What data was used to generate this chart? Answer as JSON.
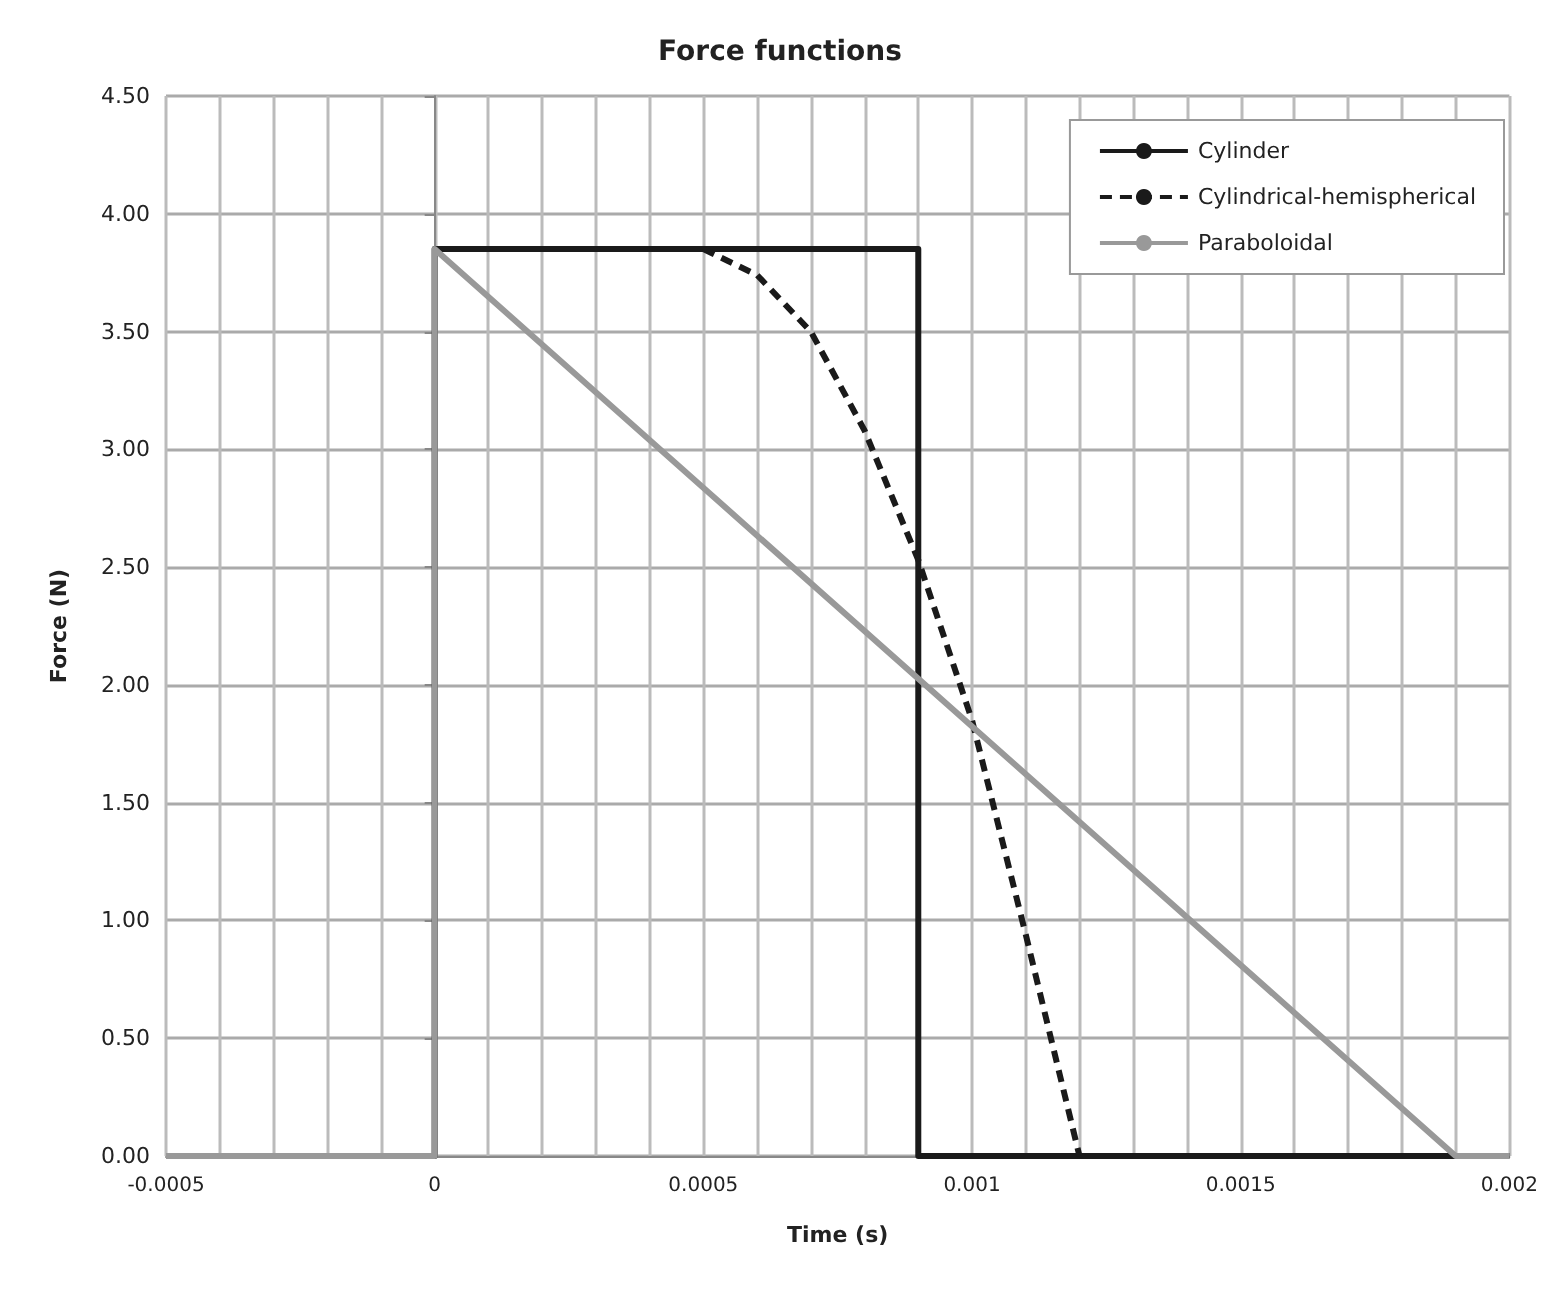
{
  "chart_data": {
    "type": "line",
    "title": "Force functions",
    "xlabel": "Time (s)",
    "ylabel": "Force (N)",
    "xlim": [
      -0.0005,
      0.002
    ],
    "xticks": [
      {
        "value": -0.0005,
        "label": "-0.0005"
      },
      {
        "value": -0.0004,
        "label": null
      },
      {
        "value": -0.0003,
        "label": null
      },
      {
        "value": -0.0002,
        "label": null
      },
      {
        "value": -0.0001,
        "label": null
      },
      {
        "value": 0,
        "label": "0"
      },
      {
        "value": 0.0001,
        "label": null
      },
      {
        "value": 0.0002,
        "label": null
      },
      {
        "value": 0.0003,
        "label": null
      },
      {
        "value": 0.0004,
        "label": null
      },
      {
        "value": 0.0005,
        "label": "0.0005"
      },
      {
        "value": 0.0006,
        "label": null
      },
      {
        "value": 0.0007,
        "label": null
      },
      {
        "value": 0.0008,
        "label": null
      },
      {
        "value": 0.0009,
        "label": null
      },
      {
        "value": 0.001,
        "label": "0.001"
      },
      {
        "value": 0.0011,
        "label": null
      },
      {
        "value": 0.0012,
        "label": null
      },
      {
        "value": 0.0013,
        "label": null
      },
      {
        "value": 0.0014,
        "label": null
      },
      {
        "value": 0.0015,
        "label": "0.0015"
      },
      {
        "value": 0.0016,
        "label": null
      },
      {
        "value": 0.0017,
        "label": null
      },
      {
        "value": 0.0018,
        "label": null
      },
      {
        "value": 0.0019,
        "label": null
      },
      {
        "value": 0.002,
        "label": "0.002"
      }
    ],
    "ylim": [
      0,
      4.5
    ],
    "yticks": [
      {
        "value": 0,
        "label": "0.00"
      },
      {
        "value": 0.5,
        "label": "0.50"
      },
      {
        "value": 1,
        "label": "1.00"
      },
      {
        "value": 1.5,
        "label": "1.50"
      },
      {
        "value": 2,
        "label": "2.00"
      },
      {
        "value": 2.5,
        "label": "2.50"
      },
      {
        "value": 3,
        "label": "3.00"
      },
      {
        "value": 3.5,
        "label": "3.50"
      },
      {
        "value": 4,
        "label": "4.00"
      },
      {
        "value": 4.5,
        "label": "4.50"
      }
    ],
    "grid": true,
    "legend": "top right",
    "marker": "none",
    "series": [
      {
        "name": "Cylinder",
        "color": "#1a1a1a",
        "line_style": "solid",
        "x": [
          -0.0005,
          0,
          0,
          0.0009,
          0.0009,
          0.002
        ],
        "values": [
          0,
          0,
          3.85,
          3.85,
          0,
          0
        ]
      },
      {
        "name": "Cylindrical-hemispherical",
        "color": "#1a1a1a",
        "line_style": "dashed",
        "x": [
          0.0005,
          0.0006,
          0.0007,
          0.0008,
          0.0009,
          0.001,
          0.0011,
          0.0012
        ],
        "values": [
          3.85,
          3.74,
          3.5,
          3.08,
          2.53,
          1.85,
          0.94,
          0
        ]
      },
      {
        "name": "Paraboloidal",
        "color": "#999999",
        "line_style": "solid",
        "x": [
          -0.0005,
          0,
          0,
          0.0019,
          0.002
        ],
        "values": [
          0,
          0,
          3.85,
          0,
          0
        ]
      }
    ]
  }
}
